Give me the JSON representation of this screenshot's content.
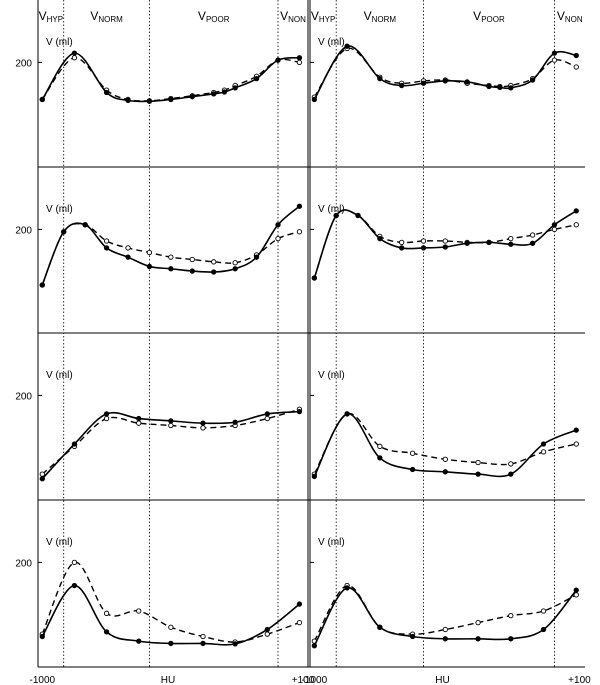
{
  "chart_data": {
    "type": "line",
    "layout": "4 rows x 2 columns of panels",
    "zones": [
      "V_HYP",
      "V_NORM",
      "V_POOR",
      "V_NON"
    ],
    "zone_labels": [
      {
        "main": "V",
        "sub": "HYP"
      },
      {
        "main": "V",
        "sub": "NORM"
      },
      {
        "main": "V",
        "sub": "POOR"
      },
      {
        "main": "V",
        "sub": "NON"
      }
    ],
    "zone_boundaries_hu": [
      -900,
      -500,
      100
    ],
    "ylabel": "V (ml)",
    "ytick": "200",
    "xticks": [
      "-1000",
      "HU",
      "+100"
    ],
    "xlim": [
      -1020,
      240
    ],
    "ylim": [
      0,
      270
    ],
    "series_styles": {
      "solid": "filled circle markers, solid line",
      "dashed": "open circle markers, dashed line"
    },
    "panels": [
      {
        "solid": {
          "x": [
            -1000,
            -850,
            -700,
            -600,
            -500,
            -400,
            -300,
            -200,
            -150,
            -100,
            0,
            100,
            200
          ],
          "y": [
            120,
            220,
            135,
            118,
            116,
            120,
            126,
            132,
            136,
            145,
            165,
            205,
            210
          ]
        },
        "dashed": {
          "x": [
            -1000,
            -850,
            -700,
            -600,
            -500,
            -400,
            -300,
            -200,
            -150,
            -100,
            0,
            100,
            200
          ],
          "y": [
            120,
            210,
            140,
            120,
            117,
            122,
            128,
            135,
            140,
            150,
            170,
            205,
            200
          ]
        }
      },
      {
        "solid": {
          "x": [
            -1000,
            -850,
            -700,
            -600,
            -500,
            -400,
            -300,
            -200,
            -150,
            -100,
            0,
            100,
            200
          ],
          "y": [
            120,
            235,
            165,
            150,
            155,
            160,
            158,
            148,
            146,
            145,
            162,
            220,
            215
          ]
        },
        "dashed": {
          "x": [
            -1000,
            -850,
            -700,
            -600,
            -500,
            -400,
            -300,
            -200,
            -150,
            -100,
            0,
            100,
            200
          ],
          "y": [
            125,
            230,
            168,
            155,
            160,
            162,
            155,
            150,
            148,
            150,
            165,
            205,
            190
          ]
        }
      },
      {
        "solid": {
          "x": [
            -1000,
            -900,
            -800,
            -700,
            -600,
            -500,
            -400,
            -300,
            -200,
            -100,
            0,
            100,
            200
          ],
          "y": [
            80,
            195,
            210,
            160,
            140,
            120,
            115,
            110,
            108,
            115,
            140,
            210,
            250
          ]
        },
        "dashed": {
          "x": [
            -1000,
            -900,
            -800,
            -700,
            -600,
            -500,
            -400,
            -300,
            -200,
            -100,
            0,
            100,
            200
          ],
          "y": [
            80,
            195,
            210,
            175,
            160,
            150,
            140,
            135,
            130,
            128,
            145,
            180,
            195
          ]
        }
      },
      {
        "solid": {
          "x": [
            -1000,
            -900,
            -800,
            -700,
            -600,
            -500,
            -400,
            -300,
            -200,
            -100,
            0,
            100,
            200
          ],
          "y": [
            95,
            230,
            230,
            180,
            160,
            160,
            162,
            170,
            172,
            168,
            170,
            210,
            240
          ]
        },
        "dashed": {
          "x": [
            -1000,
            -900,
            -800,
            -700,
            -600,
            -500,
            -400,
            -300,
            -200,
            -100,
            0,
            100,
            200
          ],
          "y": [
            95,
            230,
            230,
            185,
            172,
            175,
            175,
            172,
            172,
            180,
            188,
            200,
            210
          ]
        }
      },
      {
        "solid": {
          "x": [
            -1000,
            -850,
            -700,
            -550,
            -400,
            -250,
            -100,
            50,
            200
          ],
          "y": [
            20,
            95,
            160,
            150,
            145,
            140,
            142,
            160,
            165
          ]
        },
        "dashed": {
          "x": [
            -1000,
            -850,
            -700,
            -550,
            -400,
            -250,
            -100,
            50,
            200
          ],
          "y": [
            30,
            90,
            150,
            140,
            135,
            130,
            135,
            150,
            170
          ]
        }
      },
      {
        "solid": {
          "x": [
            -1000,
            -850,
            -700,
            -550,
            -400,
            -250,
            -100,
            50,
            200
          ],
          "y": [
            25,
            160,
            65,
            40,
            35,
            30,
            30,
            95,
            125
          ]
        },
        "dashed": {
          "x": [
            -1000,
            -850,
            -700,
            -550,
            -400,
            -250,
            -100,
            50,
            200
          ],
          "y": [
            30,
            160,
            90,
            75,
            62,
            55,
            52,
            78,
            95
          ]
        }
      },
      {
        "solid": {
          "x": [
            -1000,
            -850,
            -700,
            -550,
            -400,
            -250,
            -100,
            50,
            200
          ],
          "y": [
            40,
            150,
            50,
            30,
            25,
            25,
            24,
            55,
            110
          ]
        },
        "dashed": {
          "x": [
            -1000,
            -850,
            -700,
            -550,
            -400,
            -250,
            -100,
            50,
            200
          ],
          "y": [
            45,
            200,
            90,
            95,
            60,
            40,
            28,
            45,
            70
          ]
        }
      },
      {
        "solid": {
          "x": [
            -1000,
            -850,
            -700,
            -550,
            -400,
            -250,
            -100,
            50,
            200
          ],
          "y": [
            20,
            145,
            60,
            40,
            35,
            35,
            35,
            55,
            140
          ]
        },
        "dashed": {
          "x": [
            -1000,
            -850,
            -700,
            -550,
            -400,
            -250,
            -100,
            50,
            200
          ],
          "y": [
            30,
            150,
            60,
            45,
            55,
            70,
            85,
            95,
            130
          ]
        }
      }
    ]
  }
}
